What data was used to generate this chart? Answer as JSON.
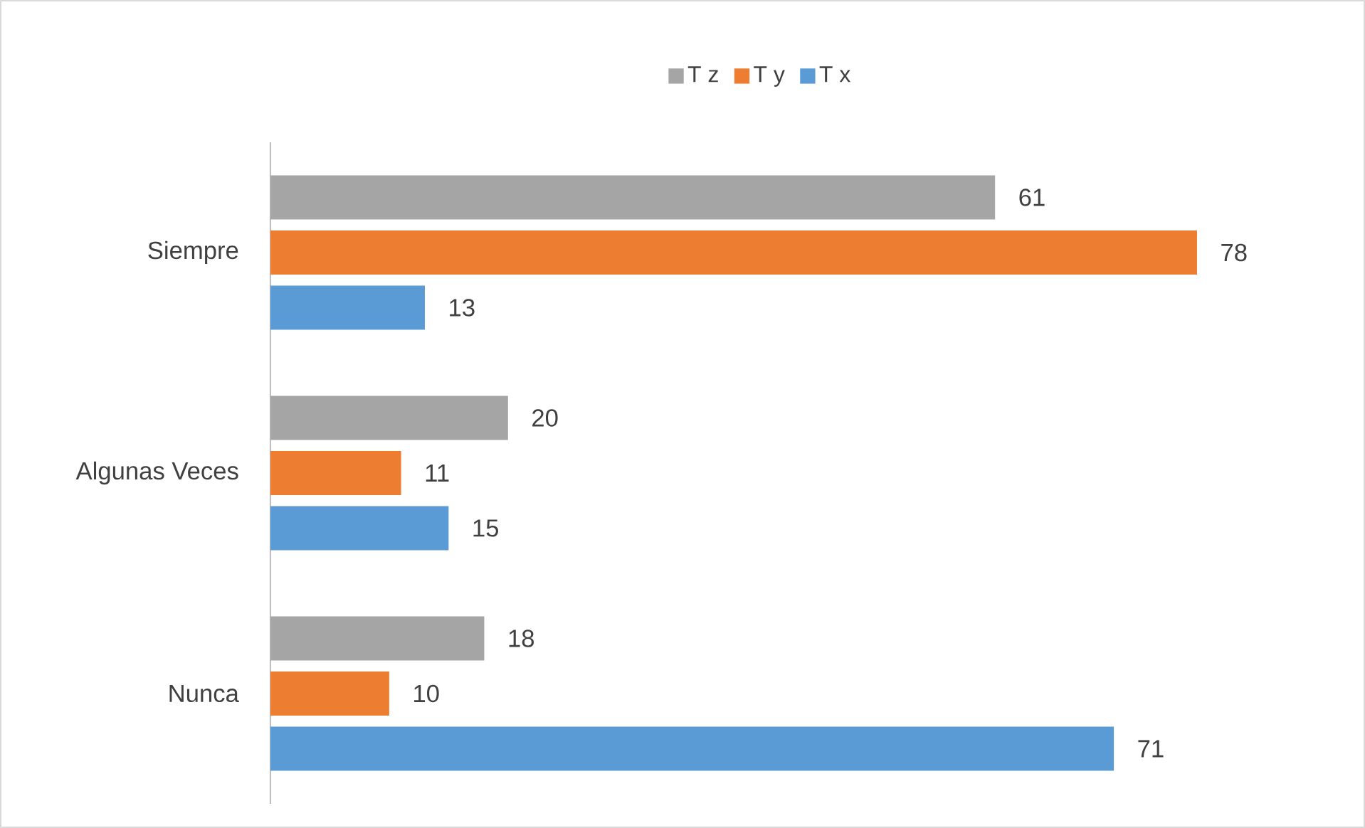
{
  "chart_data": {
    "type": "bar",
    "orientation": "horizontal",
    "categories": [
      "Siempre",
      "Algunas Veces",
      "Nunca"
    ],
    "series": [
      {
        "name": "T z",
        "color": "#a5a5a5",
        "values": [
          61,
          20,
          18
        ]
      },
      {
        "name": "T y",
        "color": "#ed7d31",
        "values": [
          78,
          11,
          10
        ]
      },
      {
        "name": "T x",
        "color": "#5b9bd5",
        "values": [
          13,
          15,
          71
        ]
      }
    ],
    "data_labels": true,
    "legend": "top"
  }
}
